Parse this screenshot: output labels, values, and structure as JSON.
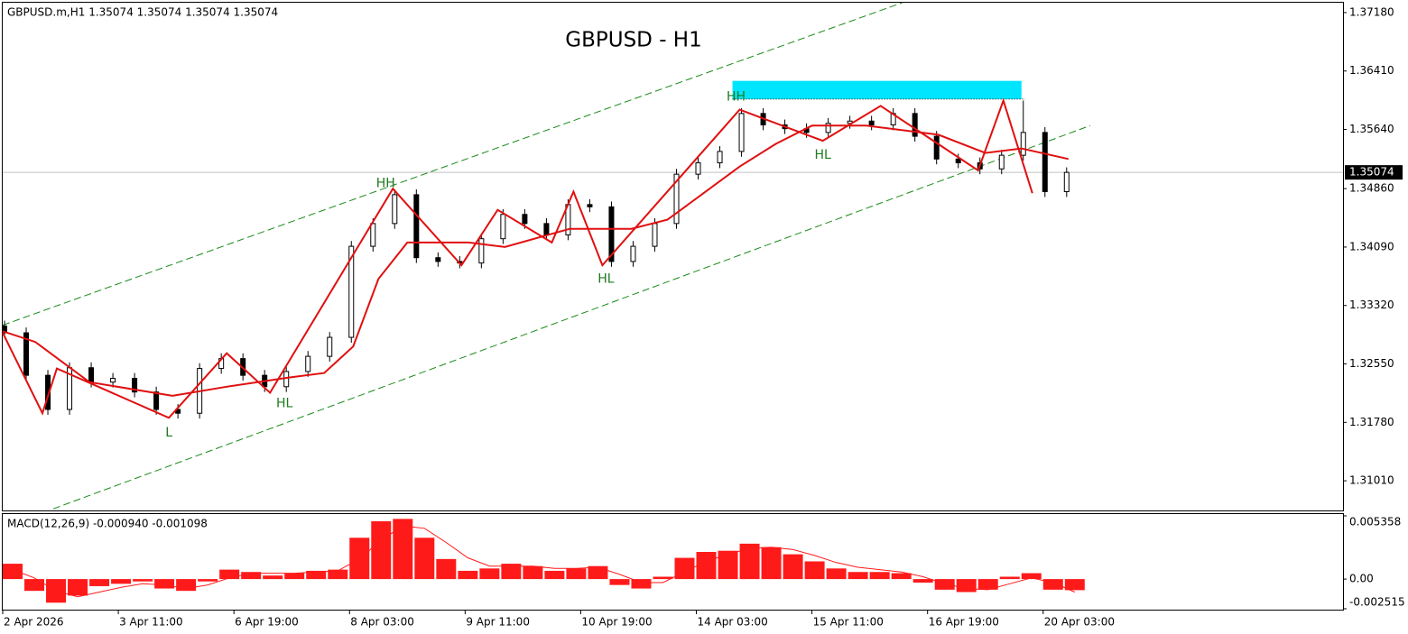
{
  "chart_data": [
    {
      "type": "candlestick",
      "title": "GBPUSD - H1",
      "header": "GBPUSD.m,H1  1.35074 1.35074 1.35074 1.35074",
      "color": "#000000",
      "x": [
        0,
        6,
        12,
        18,
        24,
        30,
        36,
        42,
        48,
        54,
        60,
        66,
        72,
        78,
        84,
        90,
        96,
        102,
        108,
        114,
        120,
        126,
        132,
        138,
        144,
        150,
        156,
        162,
        168,
        174,
        180,
        186,
        192,
        198,
        204,
        210,
        216,
        222,
        228,
        234,
        240,
        246,
        252,
        258,
        264,
        270,
        276,
        282,
        288,
        294
      ],
      "open": [
        1.3305,
        1.3296,
        1.324,
        1.3195,
        1.325,
        1.3231,
        1.3236,
        1.3218,
        1.3195,
        1.319,
        1.3249,
        1.3262,
        1.324,
        1.3225,
        1.3245,
        1.3265,
        1.329,
        1.341,
        1.344,
        1.3478,
        1.3395,
        1.339,
        1.3388,
        1.342,
        1.3452,
        1.344,
        1.3425,
        1.3465,
        1.3462,
        1.339,
        1.341,
        1.344,
        1.3505,
        1.352,
        1.3535,
        1.3585,
        1.357,
        1.3565,
        1.356,
        1.3572,
        1.3575,
        1.357,
        1.3585,
        1.3555,
        1.3525,
        1.352,
        1.3512,
        1.353,
        1.356,
        1.3482
      ],
      "high": [
        1.3312,
        1.3303,
        1.3247,
        1.3257,
        1.3257,
        1.3243,
        1.3243,
        1.3225,
        1.3202,
        1.3256,
        1.3269,
        1.3269,
        1.3247,
        1.3252,
        1.3272,
        1.3297,
        1.3417,
        1.3447,
        1.3485,
        1.3485,
        1.3402,
        1.3397,
        1.3427,
        1.3459,
        1.3459,
        1.3447,
        1.3472,
        1.3472,
        1.3469,
        1.3417,
        1.3447,
        1.3512,
        1.3527,
        1.3542,
        1.3592,
        1.3592,
        1.3577,
        1.3572,
        1.3579,
        1.3582,
        1.3582,
        1.3592,
        1.3592,
        1.3562,
        1.3532,
        1.3527,
        1.3537,
        1.3602,
        1.3567,
        1.3514
      ],
      "low": [
        1.3289,
        1.3233,
        1.3188,
        1.3188,
        1.3224,
        1.3224,
        1.3211,
        1.3188,
        1.3183,
        1.3183,
        1.3242,
        1.3233,
        1.3218,
        1.3218,
        1.3238,
        1.3258,
        1.3283,
        1.3403,
        1.3433,
        1.3388,
        1.3383,
        1.3381,
        1.3381,
        1.3413,
        1.3433,
        1.3418,
        1.3418,
        1.3455,
        1.3383,
        1.3383,
        1.3403,
        1.3433,
        1.3498,
        1.3513,
        1.3528,
        1.3563,
        1.3558,
        1.3553,
        1.3553,
        1.3565,
        1.3563,
        1.3563,
        1.3548,
        1.3518,
        1.3513,
        1.3505,
        1.3505,
        1.3523,
        1.3475,
        1.3475
      ],
      "close": [
        1.3296,
        1.324,
        1.3195,
        1.325,
        1.3231,
        1.3236,
        1.3218,
        1.3195,
        1.319,
        1.3249,
        1.3262,
        1.324,
        1.3225,
        1.3245,
        1.3265,
        1.329,
        1.341,
        1.344,
        1.3478,
        1.3395,
        1.339,
        1.3388,
        1.342,
        1.3452,
        1.344,
        1.3425,
        1.3465,
        1.3462,
        1.339,
        1.341,
        1.344,
        1.3505,
        1.352,
        1.3535,
        1.3585,
        1.357,
        1.3565,
        1.356,
        1.3572,
        1.3575,
        1.357,
        1.3585,
        1.3555,
        1.3525,
        1.352,
        1.3512,
        1.353,
        1.356,
        1.3482,
        1.35074
      ],
      "xlim": [
        0,
        371
      ],
      "ylim": [
        1.30619,
        1.3731
      ],
      "yticks": [
        {
          "value": 1.3718,
          "label": "1.37180"
        },
        {
          "value": 1.3641,
          "label": "1.36410"
        },
        {
          "value": 1.3564,
          "label": "1.35640"
        },
        {
          "value": 1.3486,
          "label": "1.34860"
        },
        {
          "value": 1.3409,
          "label": "1.34090"
        },
        {
          "value": 1.3332,
          "label": "1.33320"
        },
        {
          "value": 1.3255,
          "label": "1.32550"
        },
        {
          "value": 1.3178,
          "label": "1.31780"
        },
        {
          "value": 1.3101,
          "label": "1.31010"
        }
      ],
      "last_price": {
        "value": 1.35074,
        "label": "1.35074"
      },
      "overlays": {
        "moving_average": {
          "color": "#e01010",
          "x": [
            0,
            9,
            24,
            47,
            62,
            79,
            89,
            97,
            104,
            112,
            129,
            139,
            157,
            174,
            184,
            194,
            204,
            214,
            224,
            239,
            259,
            272,
            282,
            295
          ],
          "values": [
            1.3298,
            1.3284,
            1.3231,
            1.3213,
            1.3225,
            1.3237,
            1.3243,
            1.3278,
            1.3367,
            1.3415,
            1.3415,
            1.3409,
            1.3433,
            1.3433,
            1.3445,
            1.348,
            1.3515,
            1.3545,
            1.3569,
            1.3569,
            1.3557,
            1.3533,
            1.3539,
            1.3525
          ]
        },
        "zigzag": {
          "color": "#e01010",
          "x": [
            0,
            11,
            15,
            46,
            62,
            74,
            108,
            127,
            137,
            152,
            158,
            166,
            204,
            227,
            243,
            270,
            277,
            285
          ],
          "values": [
            1.3296,
            1.319,
            1.3249,
            1.3184,
            1.3269,
            1.3217,
            1.3486,
            1.3385,
            1.3458,
            1.3415,
            1.3482,
            1.3385,
            1.359,
            1.3549,
            1.3595,
            1.351,
            1.3602,
            1.348
          ]
        },
        "channel_upper": {
          "color": "#1a8a1a",
          "x": [
            0,
            249
          ],
          "values": [
            1.3306,
            1.3731
          ]
        },
        "channel_lower": {
          "color": "#1a8a1a",
          "x": [
            14,
            301
          ],
          "values": [
            1.3064,
            1.3569
          ]
        },
        "zone": {
          "color": "#00e5ff",
          "x": [
            202,
            282
          ],
          "y": [
            1.3604,
            1.3628
          ]
        },
        "annotations": [
          {
            "text": "HH",
            "x": 203,
            "y": 1.3607
          },
          {
            "text": "HH",
            "x": 106,
            "y": 1.3493
          },
          {
            "text": "L",
            "x": 46,
            "y": 1.3164
          },
          {
            "text": "HL",
            "x": 78,
            "y": 1.3203
          },
          {
            "text": "HL",
            "x": 167,
            "y": 1.3367
          },
          {
            "text": "HL",
            "x": 227,
            "y": 1.353
          }
        ]
      }
    },
    {
      "type": "macd",
      "label": "MACD(12,26,9) -0.000940 -0.001098",
      "x": [
        0,
        6,
        12,
        18,
        24,
        30,
        36,
        42,
        48,
        54,
        60,
        66,
        72,
        78,
        84,
        90,
        96,
        102,
        108,
        114,
        120,
        126,
        132,
        138,
        144,
        150,
        156,
        162,
        168,
        174,
        180,
        186,
        192,
        198,
        204,
        210,
        216,
        222,
        228,
        234,
        240,
        246,
        252,
        258,
        264,
        270,
        276,
        282,
        288,
        294
      ],
      "histogram": {
        "color": "#ff1a1a",
        "values": [
          0.0013,
          -0.001,
          -0.002,
          -0.0014,
          -0.0006,
          -0.0004,
          -0.0002,
          -0.0008,
          -0.001,
          -0.0002,
          0.0008,
          0.0006,
          0.0003,
          0.0005,
          0.0007,
          0.0008,
          0.0035,
          0.0049,
          0.0051,
          0.0035,
          0.0017,
          0.0007,
          0.0009,
          0.0013,
          0.0011,
          0.0007,
          0.0009,
          0.0011,
          -0.0005,
          -0.0008,
          0.0002,
          0.0018,
          0.0023,
          0.0024,
          0.003,
          0.0027,
          0.0021,
          0.0015,
          0.0009,
          0.0006,
          0.0006,
          0.0005,
          -0.0003,
          -0.0009,
          -0.0011,
          -0.0009,
          0.0002,
          0.0005,
          -0.0009,
          -0.00094
        ]
      },
      "signal": {
        "color": "#ff1a1a",
        "values": [
          0.0008,
          0.0001,
          -0.001,
          -0.0015,
          -0.0011,
          -0.0007,
          -0.0004,
          -0.0005,
          -0.0008,
          -0.0005,
          0.0001,
          0.0005,
          0.0005,
          0.0005,
          0.0006,
          0.0007,
          0.0017,
          0.0033,
          0.0045,
          0.0043,
          0.0031,
          0.0018,
          0.0011,
          0.0011,
          0.0011,
          0.0009,
          0.0009,
          0.001,
          0.0004,
          -0.0003,
          -0.0003,
          0.0006,
          0.0015,
          0.0021,
          0.0026,
          0.0027,
          0.0025,
          0.002,
          0.0014,
          0.001,
          0.0008,
          0.0006,
          0.0002,
          -0.0004,
          -0.0008,
          -0.0009,
          -0.0004,
          0.0001,
          -0.0003,
          -0.001098
        ]
      },
      "xlim": [
        0,
        371
      ],
      "ylim": [
        -0.002515,
        0.005358
      ],
      "yticks": [
        0.005358,
        {
          "value": 0,
          "label": "0.00"
        },
        -0.002515
      ],
      "xticks": [
        {
          "value": 0,
          "label": "2 Apr 2026"
        },
        {
          "value": 32,
          "label": "3 Apr 11:00"
        },
        {
          "value": 64,
          "label": "6 Apr 19:00"
        },
        {
          "value": 96,
          "label": "8 Apr 03:00"
        },
        {
          "value": 128,
          "label": "9 Apr 11:00"
        },
        {
          "value": 160,
          "label": "10 Apr 19:00"
        },
        {
          "value": 192,
          "label": "14 Apr 03:00"
        },
        {
          "value": 224,
          "label": "15 Apr 11:00"
        },
        {
          "value": 256,
          "label": "16 Apr 19:00"
        },
        {
          "value": 288,
          "label": "20 Apr 03:00"
        }
      ]
    }
  ]
}
